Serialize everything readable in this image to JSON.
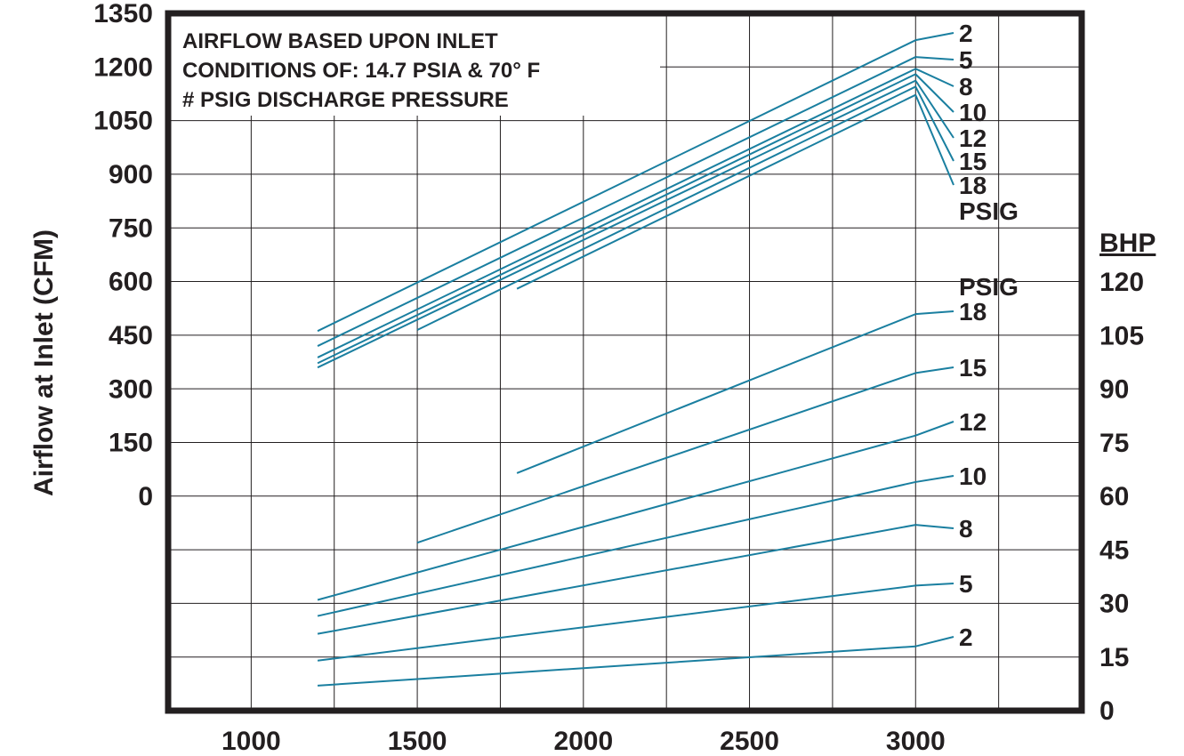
{
  "chart_data": {
    "type": "line",
    "note": [
      "AIRFLOW BASED UPON INLET",
      "CONDITIONS OF:  14.7 PSIA & 70° F",
      "# PSIG DISCHARGE PRESSURE"
    ],
    "y_left": {
      "label": "Airflow at Inlet (CFM)",
      "ticks": [
        "1350",
        "1200",
        "1050",
        "900",
        "750",
        "600",
        "450",
        "300",
        "150",
        "0"
      ],
      "range": [
        0,
        1350
      ]
    },
    "y_right": {
      "label": "BHP",
      "ticks": [
        "120",
        "105",
        "90",
        "75",
        "60",
        "45",
        "30",
        "15",
        "0"
      ],
      "range": [
        0,
        120
      ]
    },
    "x": {
      "label": "",
      "ticks": [
        "1000",
        "1500",
        "2000",
        "2500",
        "3000"
      ],
      "range": [
        750,
        3500
      ]
    },
    "grid": true,
    "airflow_unit_label": "PSIG",
    "bhp_unit_label": "PSIG",
    "airflow_series": [
      {
        "name": "2",
        "points": [
          [
            1200,
            462
          ],
          [
            3000,
            1275
          ]
        ]
      },
      {
        "name": "5",
        "points": [
          [
            1200,
            420
          ],
          [
            3000,
            1228
          ]
        ]
      },
      {
        "name": "8",
        "points": [
          [
            1200,
            388
          ],
          [
            3000,
            1195
          ]
        ]
      },
      {
        "name": "10",
        "points": [
          [
            1200,
            372
          ],
          [
            3000,
            1180
          ]
        ]
      },
      {
        "name": "12",
        "points": [
          [
            1200,
            360
          ],
          [
            3000,
            1162
          ]
        ]
      },
      {
        "name": "15",
        "points": [
          [
            1500,
            465
          ],
          [
            3000,
            1145
          ]
        ]
      },
      {
        "name": "18",
        "points": [
          [
            1800,
            580
          ],
          [
            3000,
            1122
          ]
        ]
      }
    ],
    "bhp_series": [
      {
        "name": "18",
        "points": [
          [
            1800,
            66.5
          ],
          [
            3000,
            111.0
          ]
        ]
      },
      {
        "name": "15",
        "points": [
          [
            1500,
            47.0
          ],
          [
            3000,
            94.5
          ]
        ]
      },
      {
        "name": "12",
        "points": [
          [
            1200,
            31.0
          ],
          [
            3000,
            77.0
          ]
        ]
      },
      {
        "name": "10",
        "points": [
          [
            1200,
            26.5
          ],
          [
            3000,
            64.0
          ]
        ]
      },
      {
        "name": "8",
        "points": [
          [
            1200,
            21.5
          ],
          [
            3000,
            52.0
          ]
        ]
      },
      {
        "name": "5",
        "points": [
          [
            1200,
            14.0
          ],
          [
            3000,
            35.0
          ]
        ]
      },
      {
        "name": "2",
        "points": [
          [
            1200,
            7.0
          ],
          [
            3000,
            18.0
          ]
        ]
      }
    ],
    "series_color": "#1a7fa0"
  }
}
